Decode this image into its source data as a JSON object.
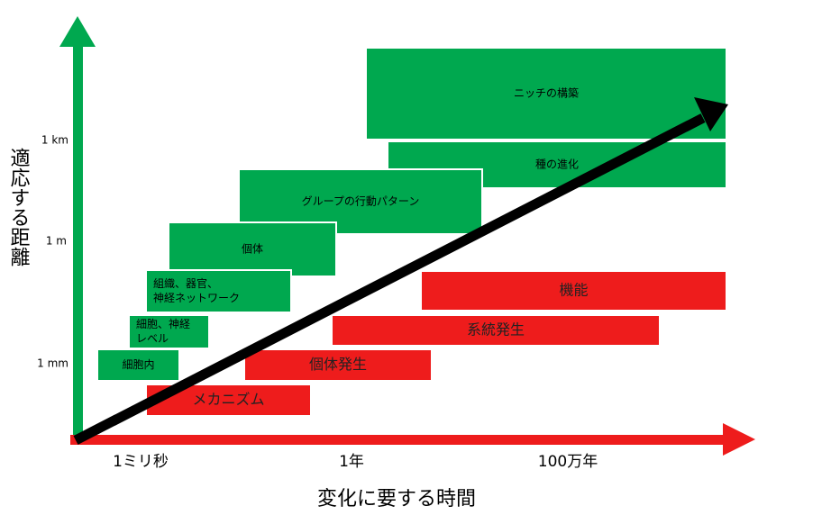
{
  "axes": {
    "y_title": "適応する距離",
    "x_title": "変化に要する時間",
    "y_ticks": [
      "1 km",
      "1 m",
      "1 mm"
    ],
    "x_ticks": [
      "1ミリ秒",
      "1年",
      "100万年"
    ]
  },
  "green_boxes": [
    {
      "lines": [
        "ニッチの構築"
      ]
    },
    {
      "lines": [
        "種の進化"
      ]
    },
    {
      "lines": [
        "グループの行動パターン"
      ]
    },
    {
      "lines": [
        "個体"
      ]
    },
    {
      "lines": [
        "組織、器官、",
        "神経ネットワーク"
      ]
    },
    {
      "lines": [
        "細胞、神経",
        "レベル"
      ]
    },
    {
      "lines": [
        "細胞内"
      ]
    }
  ],
  "red_boxes": [
    {
      "lines": [
        "機能"
      ]
    },
    {
      "lines": [
        "系統発生"
      ]
    },
    {
      "lines": [
        "個体発生"
      ]
    },
    {
      "lines": [
        "メカニズム"
      ]
    }
  ]
}
